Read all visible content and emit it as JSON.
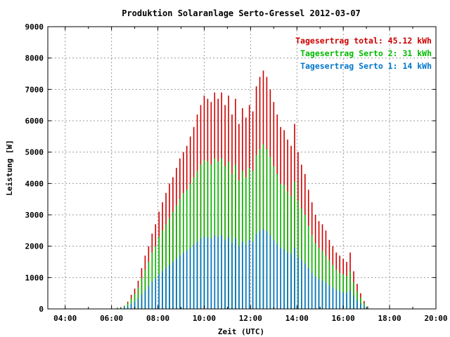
{
  "chart_data": {
    "type": "bar",
    "title": "Produktion Solaranlage Serto-Gressel 2012-03-07",
    "xlabel": "Zeit (UTC)",
    "ylabel": "Leistung [W]",
    "xlim": [
      3.25,
      20.0
    ],
    "ylim": [
      0,
      9000
    ],
    "x_ticks": [
      "04:00",
      "06:00",
      "08:00",
      "10:00",
      "12:00",
      "14:00",
      "16:00",
      "18:00",
      "20:00"
    ],
    "y_ticks": [
      "0",
      "1000",
      "2000",
      "3000",
      "4000",
      "5000",
      "6000",
      "7000",
      "8000",
      "9000"
    ],
    "grid": true,
    "legend_placement": "top-right",
    "colors": {
      "total": "#cc0000",
      "serto2": "#00bb00",
      "serto1": "#0077cc"
    },
    "legend": [
      {
        "key": "total",
        "label": "Tagesertrag total: 45.12 kWh"
      },
      {
        "key": "serto2",
        "label": "Tagesertrag Serto 2: 31 kWh"
      },
      {
        "key": "serto1",
        "label": "Tagesertrag Serto 1: 14 kWh"
      }
    ],
    "series": [
      {
        "key": "total",
        "values": [
          [
            6.25,
            40
          ],
          [
            6.4,
            60
          ],
          [
            6.55,
            100
          ],
          [
            6.7,
            230
          ],
          [
            6.85,
            450
          ],
          [
            7.0,
            650
          ],
          [
            7.15,
            900
          ],
          [
            7.3,
            1300
          ],
          [
            7.45,
            1700
          ],
          [
            7.6,
            2000
          ],
          [
            7.75,
            2400
          ],
          [
            7.9,
            2700
          ],
          [
            8.05,
            3100
          ],
          [
            8.2,
            3400
          ],
          [
            8.35,
            3700
          ],
          [
            8.5,
            4000
          ],
          [
            8.65,
            4200
          ],
          [
            8.8,
            4500
          ],
          [
            8.95,
            4800
          ],
          [
            9.1,
            5000
          ],
          [
            9.25,
            5200
          ],
          [
            9.4,
            5500
          ],
          [
            9.55,
            5800
          ],
          [
            9.7,
            6200
          ],
          [
            9.85,
            6500
          ],
          [
            10.0,
            6800
          ],
          [
            10.15,
            6700
          ],
          [
            10.3,
            6600
          ],
          [
            10.45,
            6900
          ],
          [
            10.6,
            6700
          ],
          [
            10.75,
            6900
          ],
          [
            10.9,
            6500
          ],
          [
            11.05,
            6800
          ],
          [
            11.2,
            6200
          ],
          [
            11.35,
            6700
          ],
          [
            11.5,
            5900
          ],
          [
            11.65,
            6400
          ],
          [
            11.8,
            6100
          ],
          [
            11.95,
            6500
          ],
          [
            12.1,
            6300
          ],
          [
            12.25,
            7100
          ],
          [
            12.4,
            7400
          ],
          [
            12.55,
            7600
          ],
          [
            12.7,
            7400
          ],
          [
            12.85,
            7000
          ],
          [
            13.0,
            6600
          ],
          [
            13.15,
            6200
          ],
          [
            13.3,
            5800
          ],
          [
            13.45,
            5700
          ],
          [
            13.6,
            5400
          ],
          [
            13.75,
            5200
          ],
          [
            13.9,
            5900
          ],
          [
            14.05,
            5000
          ],
          [
            14.2,
            4600
          ],
          [
            14.35,
            4300
          ],
          [
            14.5,
            3800
          ],
          [
            14.65,
            3400
          ],
          [
            14.8,
            3000
          ],
          [
            14.95,
            2800
          ],
          [
            15.1,
            2700
          ],
          [
            15.25,
            2500
          ],
          [
            15.4,
            2200
          ],
          [
            15.55,
            2000
          ],
          [
            15.7,
            1800
          ],
          [
            15.85,
            1700
          ],
          [
            16.0,
            1600
          ],
          [
            16.15,
            1500
          ],
          [
            16.3,
            1800
          ],
          [
            16.45,
            1200
          ],
          [
            16.6,
            800
          ],
          [
            16.75,
            500
          ],
          [
            16.9,
            250
          ],
          [
            17.05,
            80
          ]
        ]
      },
      {
        "key": "serto2",
        "values": [
          [
            6.25,
            35
          ],
          [
            6.4,
            50
          ],
          [
            6.55,
            85
          ],
          [
            6.7,
            170
          ],
          [
            6.85,
            330
          ],
          [
            7.0,
            480
          ],
          [
            7.15,
            680
          ],
          [
            7.3,
            980
          ],
          [
            7.45,
            1250
          ],
          [
            7.6,
            1500
          ],
          [
            7.75,
            1800
          ],
          [
            7.9,
            2000
          ],
          [
            8.05,
            2300
          ],
          [
            8.2,
            2500
          ],
          [
            8.35,
            2700
          ],
          [
            8.5,
            2900
          ],
          [
            8.65,
            3100
          ],
          [
            8.8,
            3300
          ],
          [
            8.95,
            3500
          ],
          [
            9.1,
            3700
          ],
          [
            9.25,
            3800
          ],
          [
            9.4,
            4000
          ],
          [
            9.55,
            4200
          ],
          [
            9.7,
            4400
          ],
          [
            9.85,
            4600
          ],
          [
            10.0,
            4750
          ],
          [
            10.15,
            4700
          ],
          [
            10.3,
            4600
          ],
          [
            10.45,
            4800
          ],
          [
            10.6,
            4700
          ],
          [
            10.75,
            4800
          ],
          [
            10.9,
            4550
          ],
          [
            11.05,
            4700
          ],
          [
            11.2,
            4300
          ],
          [
            11.35,
            4600
          ],
          [
            11.5,
            4100
          ],
          [
            11.65,
            4400
          ],
          [
            11.8,
            4200
          ],
          [
            11.95,
            4500
          ],
          [
            12.1,
            4400
          ],
          [
            12.25,
            4900
          ],
          [
            12.4,
            5100
          ],
          [
            12.55,
            5250
          ],
          [
            12.7,
            5100
          ],
          [
            12.85,
            4850
          ],
          [
            13.0,
            4550
          ],
          [
            13.15,
            4300
          ],
          [
            13.3,
            4000
          ],
          [
            13.45,
            3950
          ],
          [
            13.6,
            3750
          ],
          [
            13.75,
            3600
          ],
          [
            13.9,
            4050
          ],
          [
            14.05,
            3450
          ],
          [
            14.2,
            3200
          ],
          [
            14.35,
            3000
          ],
          [
            14.5,
            2650
          ],
          [
            14.65,
            2350
          ],
          [
            14.8,
            2100
          ],
          [
            14.95,
            1950
          ],
          [
            15.1,
            1850
          ],
          [
            15.25,
            1700
          ],
          [
            15.4,
            1550
          ],
          [
            15.55,
            1400
          ],
          [
            15.7,
            1250
          ],
          [
            15.85,
            1150
          ],
          [
            16.0,
            1100
          ],
          [
            16.15,
            1050
          ],
          [
            16.3,
            1200
          ],
          [
            16.45,
            850
          ],
          [
            16.6,
            560
          ],
          [
            16.75,
            360
          ],
          [
            16.9,
            180
          ],
          [
            17.05,
            60
          ]
        ]
      },
      {
        "key": "serto1",
        "values": [
          [
            6.25,
            20
          ],
          [
            6.4,
            30
          ],
          [
            6.55,
            50
          ],
          [
            6.7,
            90
          ],
          [
            6.85,
            160
          ],
          [
            7.0,
            230
          ],
          [
            7.15,
            320
          ],
          [
            7.3,
            460
          ],
          [
            7.45,
            600
          ],
          [
            7.6,
            720
          ],
          [
            7.75,
            860
          ],
          [
            7.9,
            960
          ],
          [
            8.05,
            1100
          ],
          [
            8.2,
            1200
          ],
          [
            8.35,
            1300
          ],
          [
            8.5,
            1400
          ],
          [
            8.65,
            1500
          ],
          [
            8.8,
            1600
          ],
          [
            8.95,
            1700
          ],
          [
            9.1,
            1800
          ],
          [
            9.25,
            1850
          ],
          [
            9.4,
            1950
          ],
          [
            9.55,
            2050
          ],
          [
            9.7,
            2150
          ],
          [
            9.85,
            2250
          ],
          [
            10.0,
            2300
          ],
          [
            10.15,
            2280
          ],
          [
            10.3,
            2250
          ],
          [
            10.45,
            2350
          ],
          [
            10.6,
            2300
          ],
          [
            10.75,
            2350
          ],
          [
            10.9,
            2200
          ],
          [
            11.05,
            2300
          ],
          [
            11.2,
            2100
          ],
          [
            11.35,
            2250
          ],
          [
            11.5,
            2000
          ],
          [
            11.65,
            2150
          ],
          [
            11.8,
            2050
          ],
          [
            11.95,
            2200
          ],
          [
            12.1,
            2150
          ],
          [
            12.25,
            2400
          ],
          [
            12.4,
            2480
          ],
          [
            12.55,
            2550
          ],
          [
            12.7,
            2480
          ],
          [
            12.85,
            2350
          ],
          [
            13.0,
            2200
          ],
          [
            13.15,
            2080
          ],
          [
            13.3,
            1950
          ],
          [
            13.45,
            1900
          ],
          [
            13.6,
            1800
          ],
          [
            13.75,
            1750
          ],
          [
            13.9,
            1950
          ],
          [
            14.05,
            1650
          ],
          [
            14.2,
            1550
          ],
          [
            14.35,
            1450
          ],
          [
            14.5,
            1300
          ],
          [
            14.65,
            1150
          ],
          [
            14.8,
            1030
          ],
          [
            14.95,
            950
          ],
          [
            15.1,
            900
          ],
          [
            15.25,
            830
          ],
          [
            15.4,
            750
          ],
          [
            15.55,
            680
          ],
          [
            15.7,
            610
          ],
          [
            15.85,
            560
          ],
          [
            16.0,
            530
          ],
          [
            16.15,
            510
          ],
          [
            16.3,
            580
          ],
          [
            16.45,
            420
          ],
          [
            16.6,
            280
          ],
          [
            16.75,
            180
          ],
          [
            16.9,
            90
          ],
          [
            17.05,
            30
          ]
        ]
      }
    ]
  }
}
